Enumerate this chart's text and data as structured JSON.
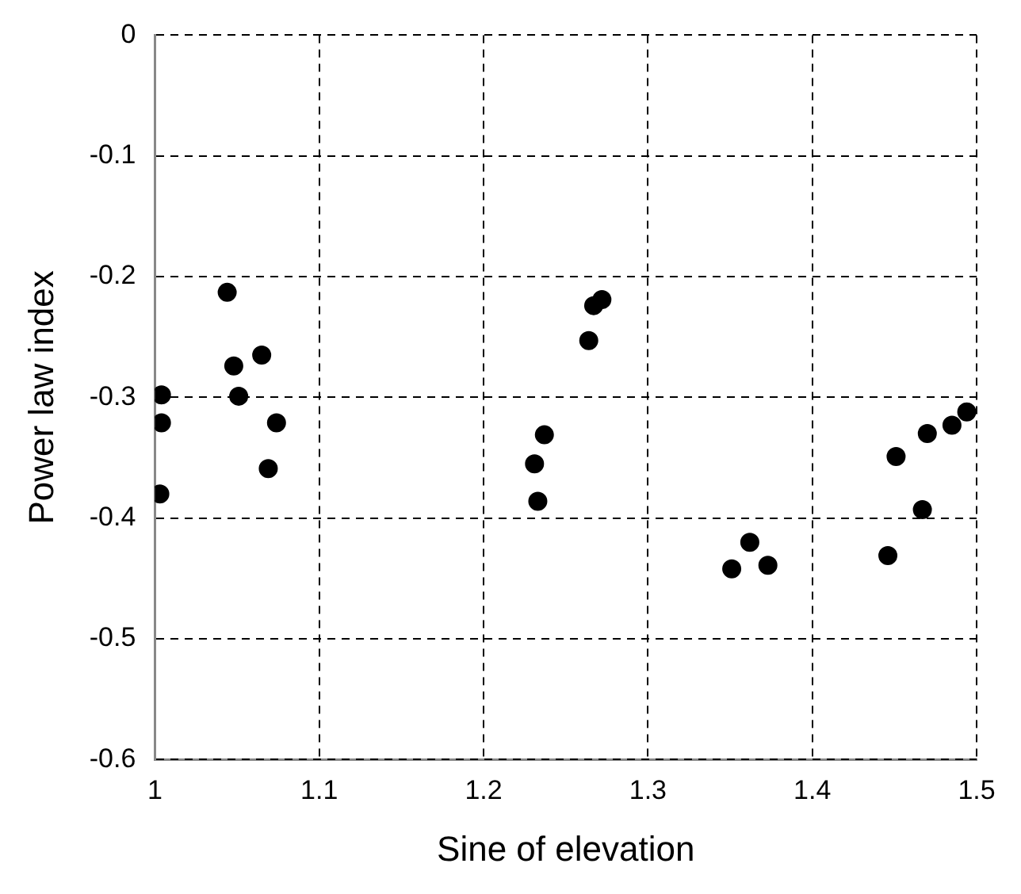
{
  "chart_data": {
    "type": "scatter",
    "xlabel": "Sine of elevation",
    "ylabel": "Power law index",
    "x": [
      1.004,
      1.004,
      1.003,
      1.044,
      1.048,
      1.051,
      1.065,
      1.069,
      1.074,
      1.231,
      1.233,
      1.237,
      1.264,
      1.267,
      1.272,
      1.351,
      1.362,
      1.373,
      1.446,
      1.451,
      1.467,
      1.47,
      1.485,
      1.494
    ],
    "values": [
      -0.298,
      -0.321,
      -0.38,
      -0.213,
      -0.274,
      -0.299,
      -0.265,
      -0.359,
      -0.321,
      -0.355,
      -0.386,
      -0.331,
      -0.253,
      -0.224,
      -0.219,
      -0.442,
      -0.42,
      -0.439,
      -0.431,
      -0.349,
      -0.393,
      -0.33,
      -0.323,
      -0.312
    ],
    "color": "#000000",
    "marker": "circle",
    "xlim": [
      1,
      1.5
    ],
    "xticks": [
      1,
      1.1,
      1.2,
      1.3,
      1.4,
      1.5
    ],
    "ylim": [
      -0.6,
      0
    ],
    "yticks": [
      -0.6,
      -0.5,
      -0.4,
      -0.3,
      -0.2,
      -0.1,
      0
    ],
    "grid": true,
    "legend": false
  }
}
